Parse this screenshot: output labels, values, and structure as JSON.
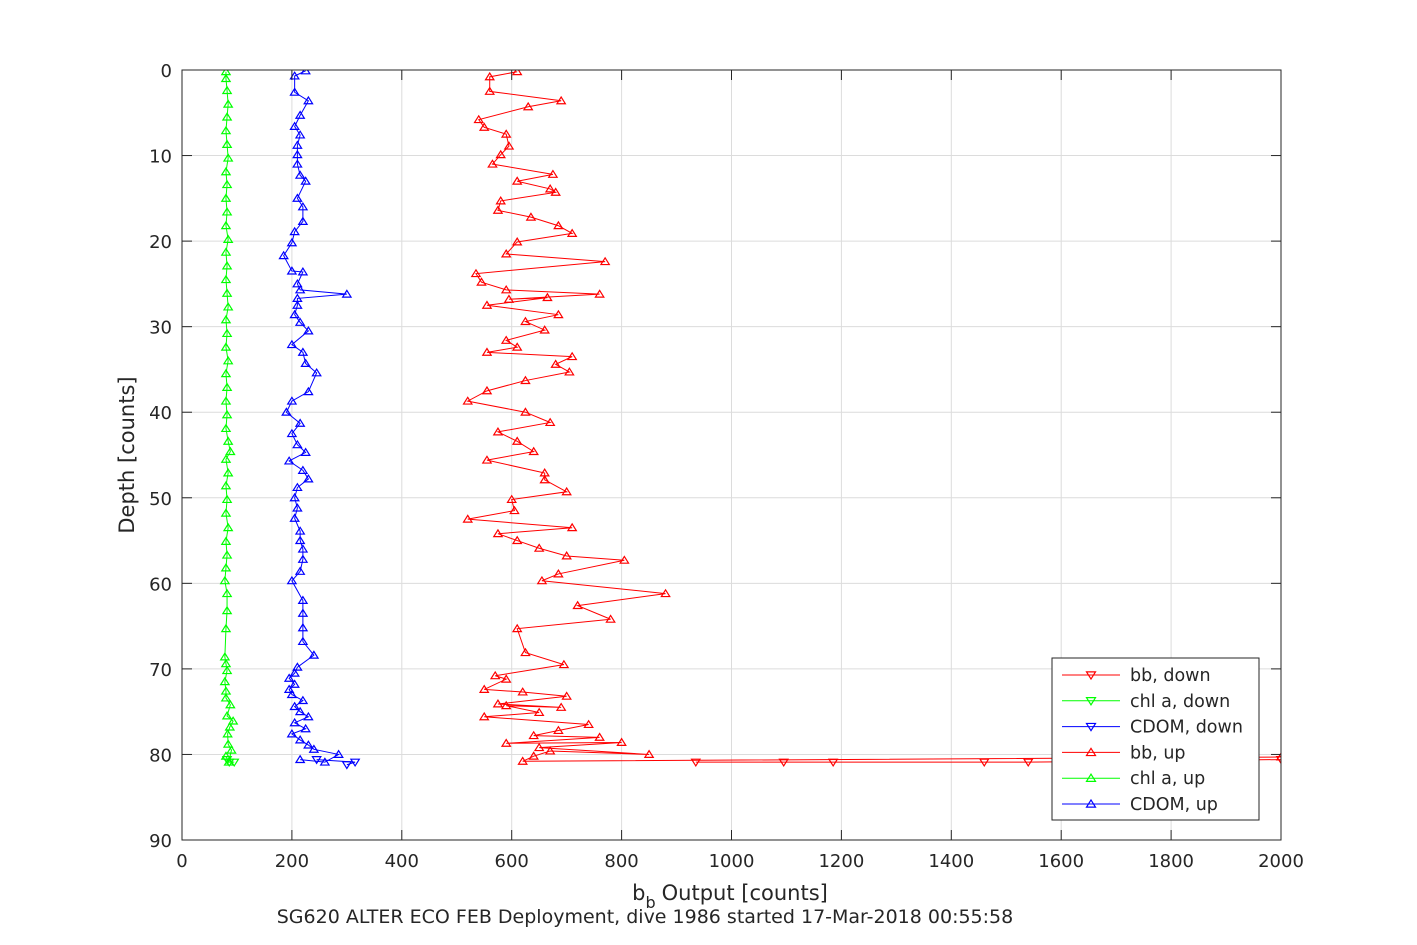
{
  "chart_data": {
    "type": "line",
    "xlabel": "Output [counts]",
    "xlabel_prefix": "b",
    "xlabel_subscript": "b",
    "ylabel": "Depth [counts]",
    "caption": "SG620 ALTER ECO FEB Deployment, dive 1986 started 17-Mar-2018 00:55:58",
    "xlim": [
      0,
      2000
    ],
    "ylim": [
      0,
      90
    ],
    "y_reversed": true,
    "grid": true,
    "legend_position": "bottom-right",
    "x_ticks": [
      "0",
      "200",
      "400",
      "600",
      "800",
      "1000",
      "1200",
      "1400",
      "1600",
      "1800",
      "2000"
    ],
    "y_ticks": [
      "0",
      "10",
      "20",
      "30",
      "40",
      "50",
      "60",
      "70",
      "80",
      "90"
    ],
    "series": [
      {
        "name": "bb, down",
        "color": "#ff0000",
        "marker": "triangle-down",
        "points": [
          [
            2000,
            80.6
          ],
          [
            1540,
            80.9
          ],
          [
            1460,
            80.9
          ],
          [
            1185,
            80.9
          ],
          [
            1095,
            80.9
          ],
          [
            935,
            80.9
          ]
        ]
      },
      {
        "name": "chl a, down",
        "color": "#00ff00",
        "marker": "triangle-down",
        "points": [
          [
            82,
            80.6
          ],
          [
            86,
            80.9
          ],
          [
            95,
            80.9
          ]
        ]
      },
      {
        "name": "CDOM, down",
        "color": "#0000ff",
        "marker": "triangle-down",
        "points": [
          [
            245,
            80.6
          ],
          [
            315,
            80.9
          ],
          [
            300,
            81.2
          ]
        ]
      },
      {
        "name": "bb, up",
        "color": "#ff0000",
        "marker": "triangle-up",
        "points": [
          [
            2000,
            80.3
          ],
          [
            620,
            80.8
          ],
          [
            640,
            80.2
          ],
          [
            670,
            79.6
          ],
          [
            850,
            80.0
          ],
          [
            650,
            79.2
          ],
          [
            800,
            78.6
          ],
          [
            590,
            78.7
          ],
          [
            760,
            78.0
          ],
          [
            640,
            77.8
          ],
          [
            685,
            77.2
          ],
          [
            740,
            76.5
          ],
          [
            550,
            75.6
          ],
          [
            650,
            75.1
          ],
          [
            590,
            74.3
          ],
          [
            690,
            74.5
          ],
          [
            575,
            74.1
          ],
          [
            700,
            73.2
          ],
          [
            620,
            72.7
          ],
          [
            550,
            72.4
          ],
          [
            590,
            71.2
          ],
          [
            570,
            70.8
          ],
          [
            695,
            69.5
          ],
          [
            625,
            68.1
          ],
          [
            610,
            65.3
          ],
          [
            780,
            64.2
          ],
          [
            720,
            62.6
          ],
          [
            880,
            61.2
          ],
          [
            655,
            59.7
          ],
          [
            685,
            58.9
          ],
          [
            805,
            57.3
          ],
          [
            700,
            56.8
          ],
          [
            650,
            55.9
          ],
          [
            610,
            55.0
          ],
          [
            575,
            54.2
          ],
          [
            710,
            53.5
          ],
          [
            520,
            52.5
          ],
          [
            605,
            51.5
          ],
          [
            600,
            50.2
          ],
          [
            700,
            49.3
          ],
          [
            660,
            47.9
          ],
          [
            660,
            47.1
          ],
          [
            555,
            45.6
          ],
          [
            640,
            44.6
          ],
          [
            610,
            43.4
          ],
          [
            575,
            42.3
          ],
          [
            670,
            41.2
          ],
          [
            625,
            40.0
          ],
          [
            520,
            38.7
          ],
          [
            555,
            37.5
          ],
          [
            625,
            36.3
          ],
          [
            705,
            35.3
          ],
          [
            680,
            34.4
          ],
          [
            710,
            33.5
          ],
          [
            555,
            33.0
          ],
          [
            610,
            32.4
          ],
          [
            590,
            31.6
          ],
          [
            660,
            30.4
          ],
          [
            625,
            29.4
          ],
          [
            685,
            28.6
          ],
          [
            555,
            27.5
          ],
          [
            665,
            26.6
          ],
          [
            595,
            26.8
          ],
          [
            760,
            26.2
          ],
          [
            590,
            25.7
          ],
          [
            545,
            24.8
          ],
          [
            535,
            23.8
          ],
          [
            770,
            22.4
          ],
          [
            590,
            21.5
          ],
          [
            610,
            20.1
          ],
          [
            710,
            19.1
          ],
          [
            685,
            18.2
          ],
          [
            635,
            17.2
          ],
          [
            575,
            16.4
          ],
          [
            580,
            15.3
          ],
          [
            680,
            14.3
          ],
          [
            670,
            13.9
          ],
          [
            610,
            13.0
          ],
          [
            675,
            12.2
          ],
          [
            565,
            11.0
          ],
          [
            580,
            9.9
          ],
          [
            595,
            8.9
          ],
          [
            590,
            7.5
          ],
          [
            550,
            6.7
          ],
          [
            540,
            5.8
          ],
          [
            630,
            4.3
          ],
          [
            690,
            3.6
          ],
          [
            560,
            2.5
          ],
          [
            560,
            0.8
          ],
          [
            610,
            0.2
          ]
        ]
      },
      {
        "name": "chl a, up",
        "color": "#00ff00",
        "marker": "triangle-up",
        "points": [
          [
            80,
            80.2
          ],
          [
            85,
            80.9
          ],
          [
            90,
            79.5
          ],
          [
            84,
            78.8
          ],
          [
            83,
            77.6
          ],
          [
            87,
            76.8
          ],
          [
            93,
            76.1
          ],
          [
            82,
            75.5
          ],
          [
            88,
            74.2
          ],
          [
            80,
            73.4
          ],
          [
            80,
            72.6
          ],
          [
            78,
            71.5
          ],
          [
            82,
            70.2
          ],
          [
            80,
            69.4
          ],
          [
            78,
            68.6
          ],
          [
            80,
            65.3
          ],
          [
            82,
            63.2
          ],
          [
            82,
            61.2
          ],
          [
            78,
            59.7
          ],
          [
            80,
            58.2
          ],
          [
            82,
            56.7
          ],
          [
            80,
            55.1
          ],
          [
            84,
            53.5
          ],
          [
            80,
            51.8
          ],
          [
            82,
            50.2
          ],
          [
            80,
            48.6
          ],
          [
            84,
            47.1
          ],
          [
            80,
            45.5
          ],
          [
            88,
            44.6
          ],
          [
            84,
            43.4
          ],
          [
            80,
            41.9
          ],
          [
            82,
            40.3
          ],
          [
            80,
            38.7
          ],
          [
            82,
            37.1
          ],
          [
            80,
            35.5
          ],
          [
            84,
            34.0
          ],
          [
            80,
            32.4
          ],
          [
            82,
            30.8
          ],
          [
            80,
            29.2
          ],
          [
            84,
            27.7
          ],
          [
            82,
            26.1
          ],
          [
            80,
            24.5
          ],
          [
            82,
            22.9
          ],
          [
            80,
            21.3
          ],
          [
            84,
            19.8
          ],
          [
            80,
            18.2
          ],
          [
            82,
            16.6
          ],
          [
            80,
            15.0
          ],
          [
            82,
            13.4
          ],
          [
            80,
            11.9
          ],
          [
            84,
            10.3
          ],
          [
            82,
            8.7
          ],
          [
            80,
            7.1
          ],
          [
            82,
            5.5
          ],
          [
            84,
            4.0
          ],
          [
            82,
            2.4
          ],
          [
            80,
            1.0
          ],
          [
            80,
            0.2
          ]
        ]
      },
      {
        "name": "CDOM, up",
        "color": "#0000ff",
        "marker": "triangle-up",
        "points": [
          [
            215,
            80.6
          ],
          [
            260,
            80.9
          ],
          [
            285,
            80.0
          ],
          [
            240,
            79.4
          ],
          [
            230,
            78.9
          ],
          [
            215,
            78.3
          ],
          [
            200,
            77.6
          ],
          [
            225,
            77.0
          ],
          [
            205,
            76.3
          ],
          [
            230,
            75.6
          ],
          [
            215,
            75.0
          ],
          [
            205,
            74.4
          ],
          [
            220,
            73.7
          ],
          [
            200,
            73.0
          ],
          [
            195,
            72.4
          ],
          [
            205,
            71.8
          ],
          [
            195,
            71.1
          ],
          [
            205,
            70.5
          ],
          [
            210,
            69.8
          ],
          [
            240,
            68.4
          ],
          [
            220,
            66.8
          ],
          [
            220,
            65.2
          ],
          [
            220,
            63.5
          ],
          [
            220,
            62.0
          ],
          [
            200,
            59.7
          ],
          [
            215,
            58.6
          ],
          [
            220,
            57.2
          ],
          [
            220,
            56.0
          ],
          [
            215,
            55.0
          ],
          [
            215,
            53.9
          ],
          [
            205,
            52.4
          ],
          [
            210,
            51.2
          ],
          [
            205,
            50.0
          ],
          [
            210,
            48.8
          ],
          [
            230,
            47.8
          ],
          [
            220,
            46.8
          ],
          [
            195,
            45.7
          ],
          [
            225,
            44.7
          ],
          [
            210,
            43.8
          ],
          [
            200,
            42.5
          ],
          [
            215,
            41.3
          ],
          [
            190,
            40.0
          ],
          [
            200,
            38.7
          ],
          [
            230,
            37.6
          ],
          [
            245,
            35.4
          ],
          [
            225,
            34.3
          ],
          [
            220,
            33.0
          ],
          [
            200,
            32.1
          ],
          [
            230,
            30.5
          ],
          [
            215,
            29.5
          ],
          [
            205,
            28.6
          ],
          [
            210,
            27.5
          ],
          [
            210,
            26.7
          ],
          [
            300,
            26.2
          ],
          [
            215,
            25.7
          ],
          [
            210,
            25.0
          ],
          [
            220,
            23.6
          ],
          [
            200,
            23.5
          ],
          [
            185,
            21.7
          ],
          [
            200,
            20.2
          ],
          [
            205,
            18.9
          ],
          [
            220,
            17.7
          ],
          [
            220,
            16.0
          ],
          [
            210,
            15.0
          ],
          [
            225,
            13.0
          ],
          [
            215,
            12.3
          ],
          [
            210,
            11.0
          ],
          [
            210,
            9.9
          ],
          [
            210,
            8.8
          ],
          [
            215,
            7.6
          ],
          [
            205,
            6.6
          ],
          [
            215,
            5.3
          ],
          [
            230,
            3.6
          ],
          [
            205,
            2.6
          ],
          [
            205,
            0.7
          ],
          [
            225,
            0.1
          ]
        ]
      }
    ]
  }
}
